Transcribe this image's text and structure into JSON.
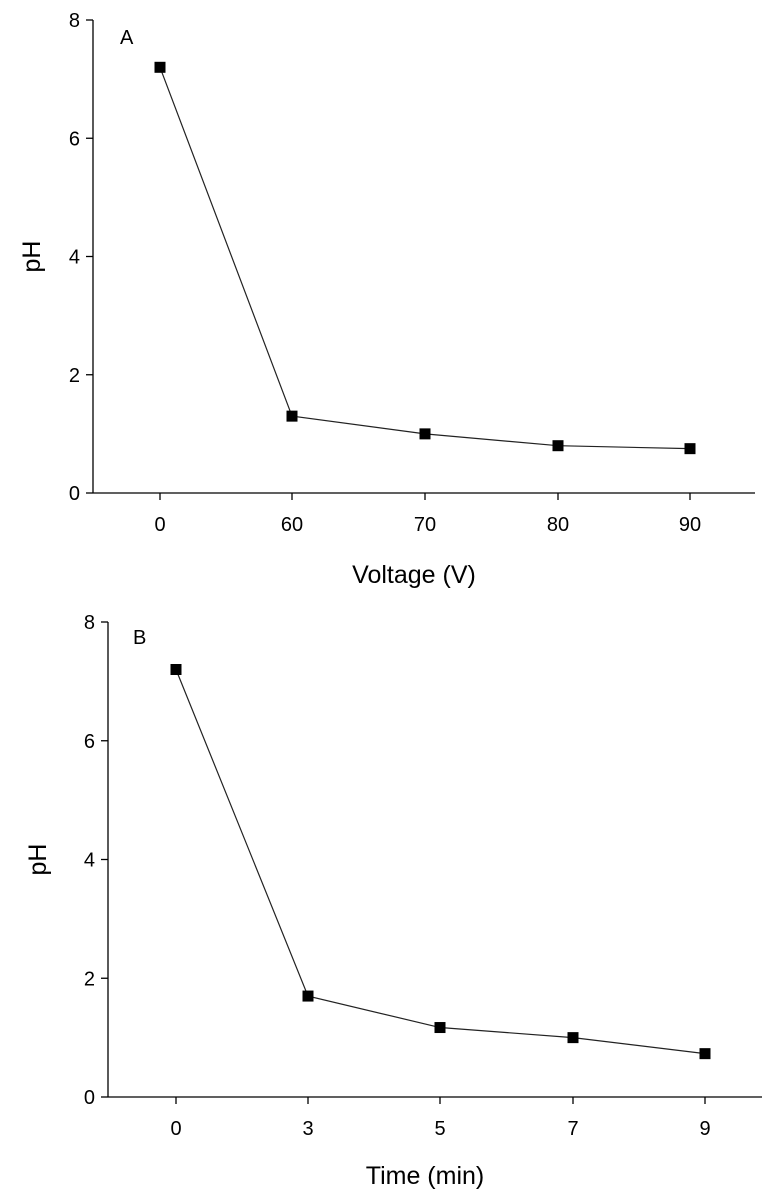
{
  "chart_data": [
    {
      "type": "line",
      "panel_label": "A",
      "xlabel": "Voltage (V)",
      "ylabel": "pH",
      "categories": [
        "0",
        "60",
        "70",
        "80",
        "90"
      ],
      "values": [
        7.2,
        1.3,
        1.0,
        0.8,
        0.75
      ],
      "ylim": [
        0,
        8
      ],
      "yticks": [
        "0",
        "2",
        "4",
        "6",
        "8"
      ],
      "grid": false,
      "marker": "square",
      "color": "#000000"
    },
    {
      "type": "line",
      "panel_label": "B",
      "xlabel": "Time (min)",
      "ylabel": "pH",
      "categories": [
        "0",
        "3",
        "5",
        "7",
        "9"
      ],
      "values": [
        7.2,
        1.7,
        1.17,
        1.0,
        0.73
      ],
      "ylim": [
        0,
        8
      ],
      "yticks": [
        "0",
        "2",
        "4",
        "6",
        "8"
      ],
      "grid": false,
      "marker": "square",
      "color": "#000000"
    }
  ]
}
